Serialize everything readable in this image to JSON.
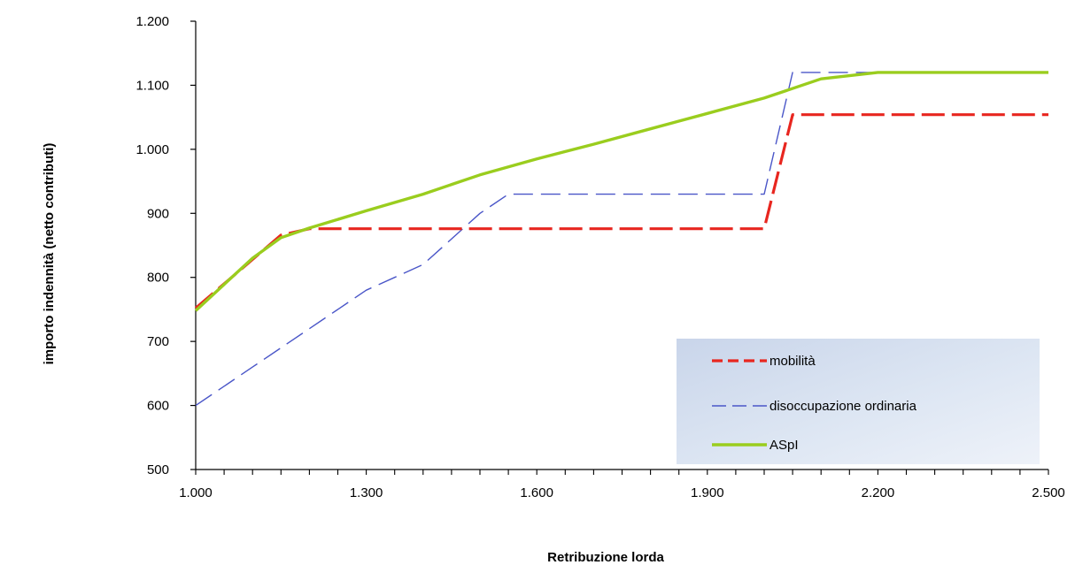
{
  "chart_data": {
    "type": "line",
    "xlabel": "Retribuzione lorda",
    "ylabel": "importo indennità (netto contributi)",
    "xlim": [
      1000,
      2500
    ],
    "ylim": [
      500,
      1200
    ],
    "x_ticks": [
      1000,
      1300,
      1600,
      1900,
      2200,
      2500
    ],
    "x_tick_labels": [
      "1.000",
      "1.300",
      "1.600",
      "1.900",
      "2.200",
      "2.500"
    ],
    "y_ticks": [
      500,
      600,
      700,
      800,
      900,
      1000,
      1100,
      1200
    ],
    "y_tick_labels": [
      "500",
      "600",
      "700",
      "800",
      "900",
      "1.000",
      "1.100",
      "1.200"
    ],
    "legend_position": "bottom-right",
    "series": [
      {
        "name": "mobilità",
        "color": "#e8261f",
        "style": "dashed",
        "x": [
          1000,
          1050,
          1100,
          1150,
          1200,
          1250,
          1300,
          1400,
          1500,
          1600,
          1700,
          1800,
          1900,
          2000,
          2050,
          2100,
          2200,
          2300,
          2400,
          2500
        ],
        "y": [
          752,
          790,
          828,
          866,
          876,
          876,
          876,
          876,
          876,
          876,
          876,
          876,
          876,
          876,
          1054,
          1054,
          1054,
          1054,
          1054,
          1054
        ]
      },
      {
        "name": "disoccupazione ordinaria",
        "color": "#4a56c8",
        "style": "dashed",
        "x": [
          1000,
          1100,
          1200,
          1300,
          1400,
          1500,
          1550,
          1600,
          1700,
          1800,
          1900,
          2000,
          2050,
          2100,
          2200,
          2300,
          2400,
          2500
        ],
        "y": [
          600,
          660,
          720,
          780,
          820,
          900,
          930,
          930,
          930,
          930,
          930,
          930,
          1120,
          1120,
          1120,
          1120,
          1120,
          1120
        ]
      },
      {
        "name": "ASpI",
        "color": "#9acd1e",
        "style": "solid",
        "x": [
          1000,
          1100,
          1150,
          1200,
          1300,
          1400,
          1500,
          1600,
          1700,
          1800,
          1900,
          2000,
          2100,
          2200,
          2300,
          2400,
          2500
        ],
        "y": [
          748,
          830,
          862,
          877,
          904,
          930,
          960,
          985,
          1008,
          1032,
          1056,
          1080,
          1110,
          1120,
          1120,
          1120,
          1120
        ]
      }
    ]
  }
}
